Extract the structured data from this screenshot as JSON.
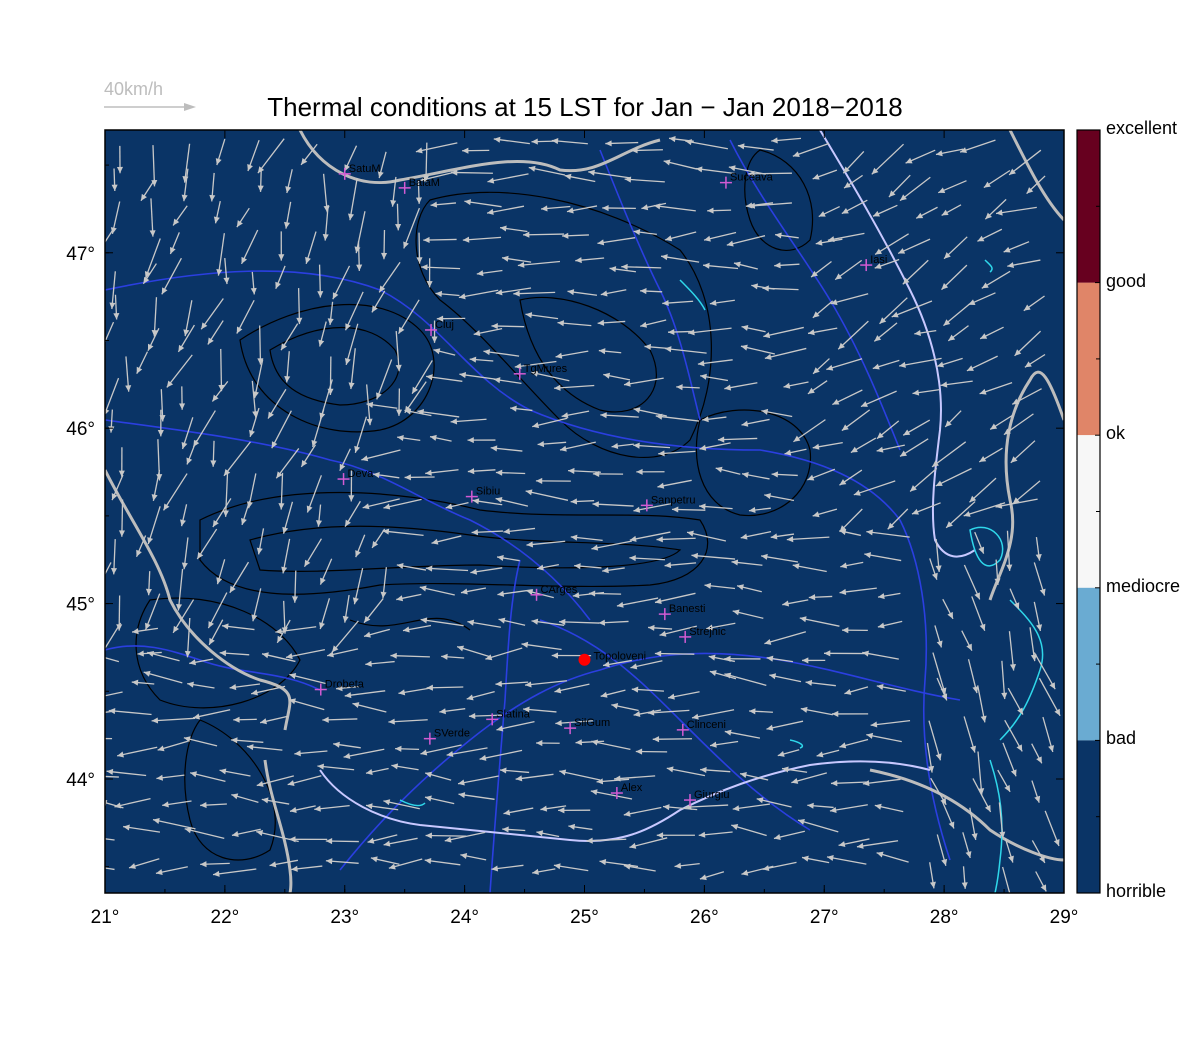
{
  "title": "Thermal conditions at 15 LST for Jan − Jan  2018−2018",
  "wind_key": {
    "label": "40km/h",
    "color": "#bdbdbd"
  },
  "map": {
    "background": "#0a3466",
    "x_ticks": [
      "21°",
      "22°",
      "23°",
      "24°",
      "25°",
      "26°",
      "27°",
      "28°",
      "29°"
    ],
    "y_ticks": [
      "47°",
      "46°",
      "45°",
      "44°"
    ],
    "lon_range": [
      21,
      29
    ],
    "lat_range": [
      43.35,
      47.7
    ],
    "selected_location": {
      "name": "Topoloveni",
      "lon": 25.0,
      "lat": 44.68,
      "color": "#ff0000"
    },
    "stations": [
      {
        "name": "SatuM",
        "lon": 23.0,
        "lat": 47.45
      },
      {
        "name": "BaiaM",
        "lon": 23.5,
        "lat": 47.37
      },
      {
        "name": "Suceava",
        "lon": 26.18,
        "lat": 47.4
      },
      {
        "name": "Iasi",
        "lon": 27.35,
        "lat": 46.93
      },
      {
        "name": "Cluj",
        "lon": 23.72,
        "lat": 46.56
      },
      {
        "name": "TgMures",
        "lon": 24.46,
        "lat": 46.31
      },
      {
        "name": "Deva",
        "lon": 22.99,
        "lat": 45.71
      },
      {
        "name": "Sibiu",
        "lon": 24.06,
        "lat": 45.61
      },
      {
        "name": "Sanpetru",
        "lon": 25.52,
        "lat": 45.56
      },
      {
        "name": "CArges",
        "lon": 24.6,
        "lat": 45.05
      },
      {
        "name": "Banesti",
        "lon": 25.67,
        "lat": 44.94
      },
      {
        "name": "Strejnic",
        "lon": 25.84,
        "lat": 44.81
      },
      {
        "name": "Drobeta",
        "lon": 22.8,
        "lat": 44.51
      },
      {
        "name": "Slatina",
        "lon": 24.23,
        "lat": 44.34
      },
      {
        "name": "SilGum",
        "lon": 24.88,
        "lat": 44.29
      },
      {
        "name": "Clinceni",
        "lon": 25.82,
        "lat": 44.28
      },
      {
        "name": "SVerde",
        "lon": 23.71,
        "lat": 44.23
      },
      {
        "name": "Alex",
        "lon": 25.27,
        "lat": 43.92
      },
      {
        "name": "Giurgiu",
        "lon": 25.88,
        "lat": 43.88
      }
    ]
  },
  "colorbar": {
    "levels": [
      {
        "label": "excellent",
        "color": "#67001f"
      },
      {
        "label": "good",
        "color": "#67001f"
      },
      {
        "label": "ok",
        "color": "#e08568"
      },
      {
        "label": "mediocre",
        "color": "#f7f7f7"
      },
      {
        "label": "bad",
        "color": "#6aabd2"
      },
      {
        "label": "horrible",
        "color": "#0a3466"
      }
    ]
  }
}
